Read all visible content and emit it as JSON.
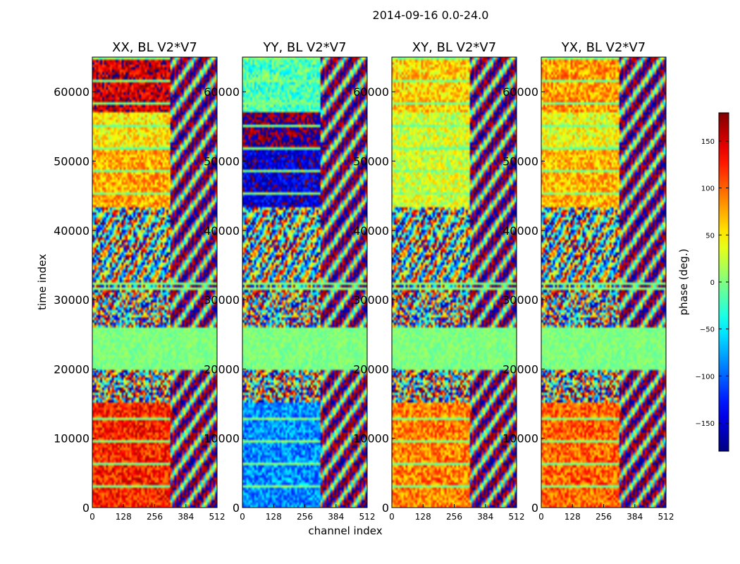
{
  "figure_title": "2014-09-16 0.0-24.0",
  "chart_data": {
    "type": "heatmap",
    "suptitle": "2014-09-16 0.0-24.0",
    "xlabel": "channel index",
    "ylabel": "time index",
    "xlim": [
      0,
      512
    ],
    "ylim": [
      0,
      65000
    ],
    "xticks": [
      0,
      128,
      256,
      384,
      512
    ],
    "yticks": [
      0,
      10000,
      20000,
      30000,
      40000,
      50000,
      60000
    ],
    "panels": [
      {
        "title": "XX, BL V2*V7",
        "pol": "XX"
      },
      {
        "title": "YY, BL V2*V7",
        "pol": "YY"
      },
      {
        "title": "XY, BL V2*V7",
        "pol": "XY"
      },
      {
        "title": "YX, BL V2*V7",
        "pol": "YX"
      }
    ],
    "colorbar": {
      "label": "phase (deg.)",
      "range": [
        -180,
        180
      ],
      "ticks": [
        150,
        100,
        50,
        0,
        -50,
        -100,
        -150
      ],
      "tick_labels": [
        "150",
        "100",
        "50",
        "0",
        "−50",
        "−100",
        "−150"
      ],
      "colormap": "jet"
    }
  }
}
